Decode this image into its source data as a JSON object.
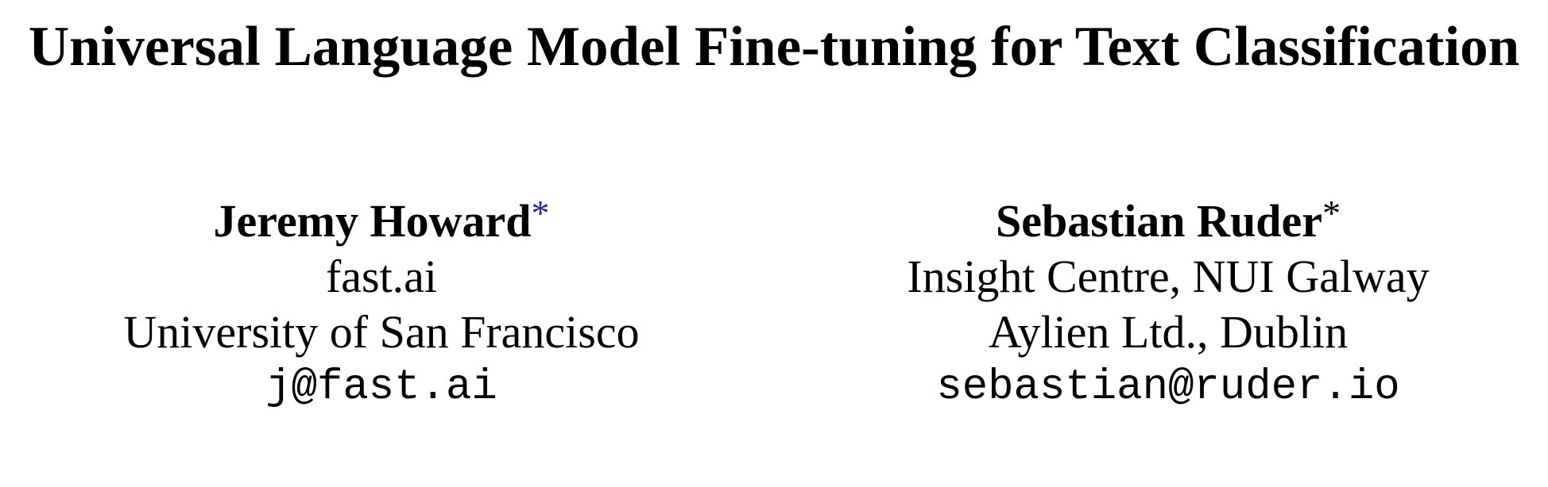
{
  "paper": {
    "title": "Universal Language Model Fine-tuning for Text Classification",
    "authors": [
      {
        "name": "Jeremy Howard",
        "footnote_mark": "*",
        "affiliation_1": "fast.ai",
        "affiliation_2": "University of San Francisco",
        "email": "j@fast.ai"
      },
      {
        "name": "Sebastian Ruder",
        "footnote_mark": "*",
        "affiliation_1": "Insight Centre, NUI Galway",
        "affiliation_2": "Aylien Ltd., Dublin",
        "email": "sebastian@ruder.io"
      }
    ]
  },
  "colors": {
    "text": "#000000",
    "footnote_link": "#1c2b9e",
    "background": "#ffffff"
  }
}
